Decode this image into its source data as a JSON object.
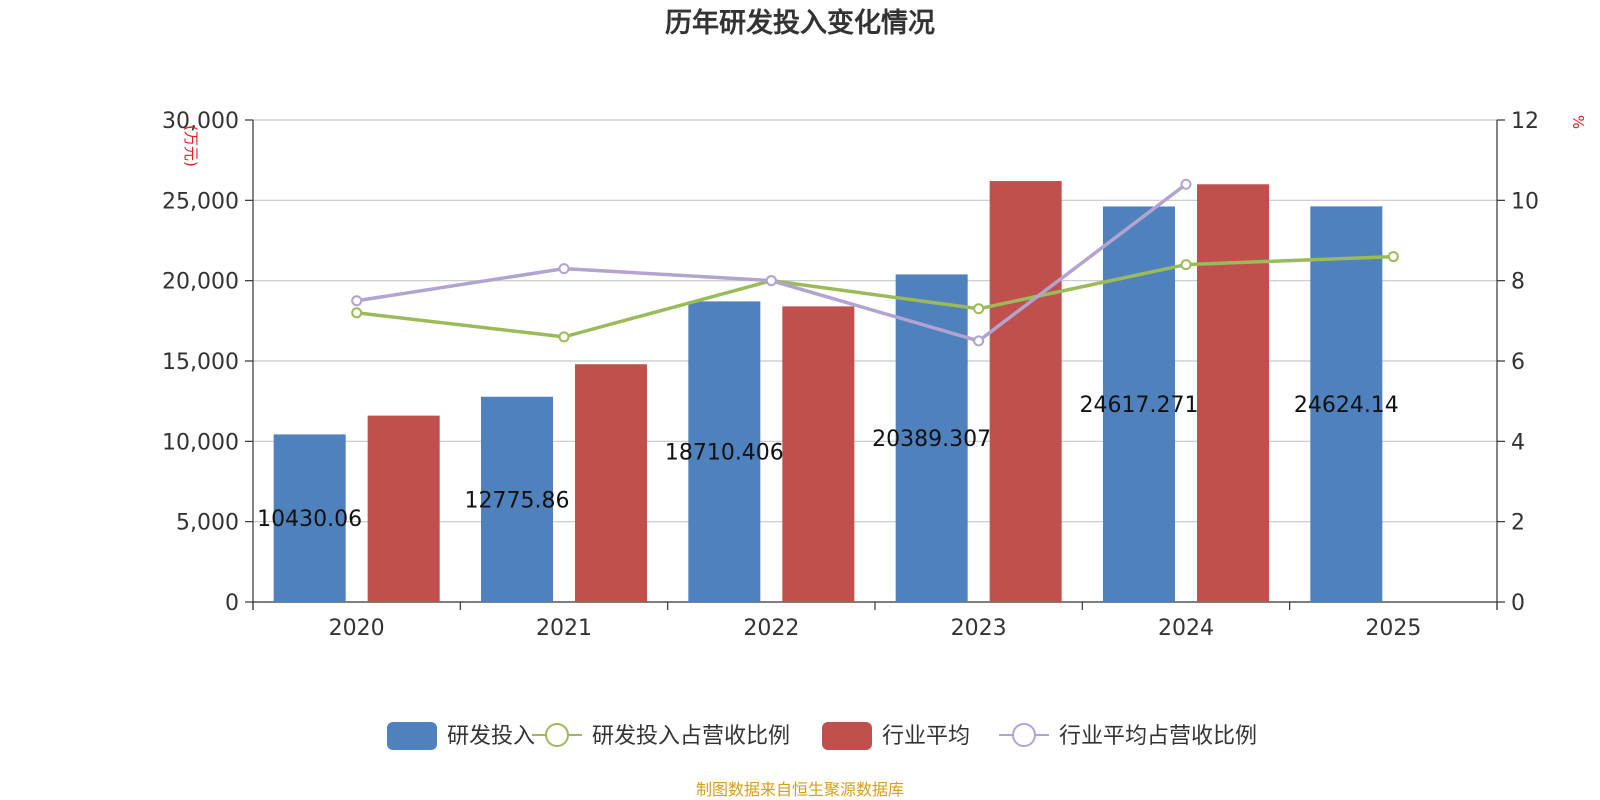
{
  "chart_data": {
    "type": "bar",
    "title": "历年研发投入变化情况",
    "categories": [
      "2020",
      "2021",
      "2022",
      "2023",
      "2024",
      "2025"
    ],
    "y_left": {
      "unit": "万元",
      "ylim": [
        0,
        30000
      ],
      "ticks": [
        "0",
        "5,000",
        "10,000",
        "15,000",
        "20,000",
        "25,000",
        "30,000"
      ]
    },
    "y_right": {
      "unit": "%",
      "ylim": [
        0,
        12
      ],
      "ticks": [
        "0",
        "2",
        "4",
        "6",
        "8",
        "10",
        "12"
      ]
    },
    "series": [
      {
        "name": "研发投入",
        "type": "bar",
        "axis": "left",
        "color": "#4f81bd",
        "values": [
          10430.06,
          12775.86,
          18710.406,
          20389.307,
          24617.271,
          24624.14
        ],
        "labels": [
          "10430.06",
          "12775.86",
          "18710.406",
          "20389.307",
          "24617.271",
          "24624.14"
        ]
      },
      {
        "name": "研发投入占营收比例",
        "type": "line",
        "axis": "right",
        "color": "#9bbb59",
        "values": [
          7.2,
          6.6,
          8.0,
          7.3,
          8.4,
          8.6
        ]
      },
      {
        "name": "行业平均",
        "type": "bar",
        "axis": "left",
        "color": "#c0504d",
        "values": [
          11600,
          14800,
          18400,
          26200,
          26000,
          null
        ]
      },
      {
        "name": "行业平均占营收比例",
        "type": "line",
        "axis": "right",
        "color": "#b3a3d0",
        "values": [
          7.5,
          8.3,
          8.0,
          6.5,
          10.4,
          null
        ]
      }
    ],
    "legend_position": "bottom",
    "grid": true
  },
  "colors": {
    "axis_unit": "#e02020",
    "source": "#d4a017"
  },
  "source_text": "制图数据来自恒生聚源数据库"
}
